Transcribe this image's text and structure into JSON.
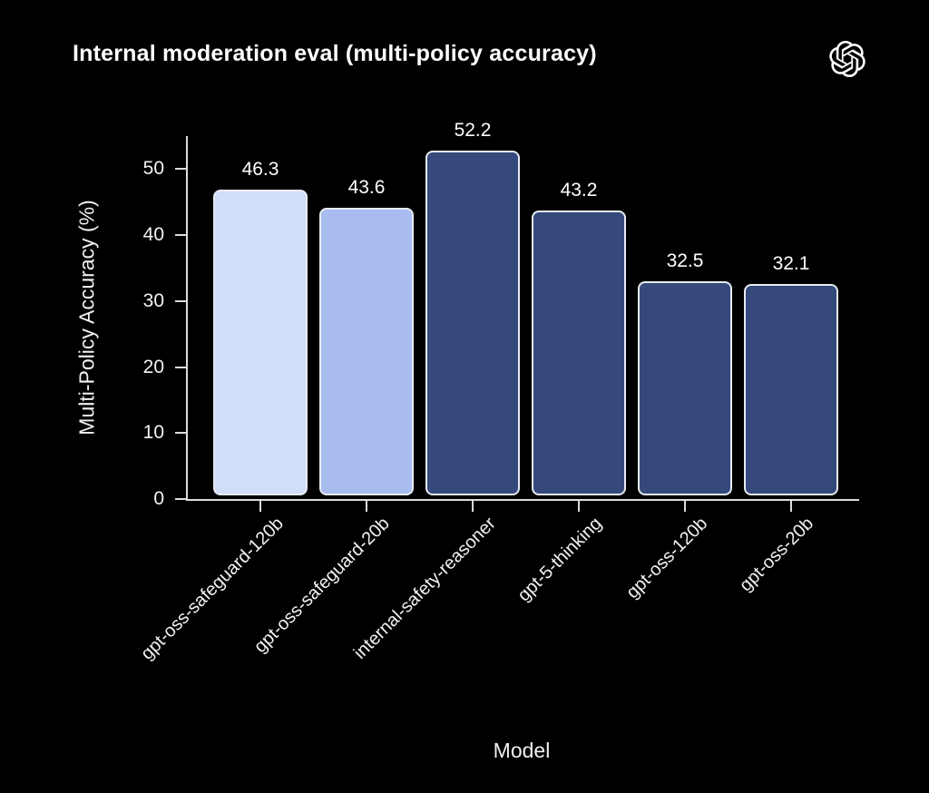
{
  "header": {
    "title": "Internal moderation eval (multi-policy accuracy)",
    "logo_icon": "openai-logo"
  },
  "chart_data": {
    "type": "bar",
    "title": "Internal moderation eval (multi-policy accuracy)",
    "categories": [
      "gpt-oss-safeguard-120b",
      "gpt-oss-safeguard-20b",
      "internal-safety-reasoner",
      "gpt-5-thinking",
      "gpt-oss-120b",
      "gpt-oss-20b"
    ],
    "values": [
      46.3,
      43.6,
      52.2,
      43.2,
      32.5,
      32.1
    ],
    "value_labels": [
      "46.3",
      "43.6",
      "52.2",
      "43.2",
      "32.5",
      "32.1"
    ],
    "bar_colors": [
      "#d2def8",
      "#a8bcf0",
      "#35497c",
      "#35497c",
      "#35497c",
      "#35497c"
    ],
    "xlabel": "Model",
    "ylabel": "Multi-Policy Accuracy (%)",
    "yticks": [
      0,
      10,
      20,
      30,
      40,
      50
    ],
    "ylim": [
      0,
      55
    ],
    "x_tick_rotation_deg": 45,
    "grid": false,
    "legend": null,
    "colors": {
      "background": "#000000",
      "text": "#f2f2f2",
      "axis": "#dcdcdc",
      "bar_border": "#e7eaf2",
      "value_label": "#ffffff"
    }
  }
}
